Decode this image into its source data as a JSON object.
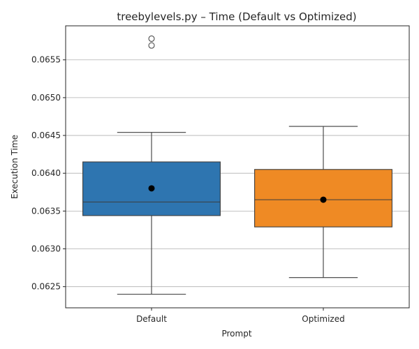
{
  "chart_data": {
    "type": "box",
    "title": "treebylevels.py – Time (Default vs Optimized)",
    "xlabel": "Prompt",
    "ylabel": "Execution Time",
    "ylim": [
      0.06222,
      0.06595
    ],
    "yticks": [
      0.0625,
      0.063,
      0.0635,
      0.064,
      0.0645,
      0.065,
      0.0655
    ],
    "ytick_labels": [
      "0.0625",
      "0.0630",
      "0.0635",
      "0.0640",
      "0.0645",
      "0.0650",
      "0.0655"
    ],
    "grid": "horizontal",
    "categories": [
      "Default",
      "Optimized"
    ],
    "series": [
      {
        "category": "Default",
        "color": "#2e75b0",
        "whisker_low": 0.0624,
        "q1": 0.06344,
        "median": 0.06362,
        "q3": 0.06415,
        "whisker_high": 0.06454,
        "mean": 0.0638,
        "outliers": [
          0.06569,
          0.06578
        ]
      },
      {
        "category": "Optimized",
        "color": "#ef8a24",
        "whisker_low": 0.06262,
        "q1": 0.06329,
        "median": 0.06365,
        "q3": 0.06405,
        "whisker_high": 0.06462,
        "mean": 0.06365,
        "outliers": []
      }
    ]
  }
}
